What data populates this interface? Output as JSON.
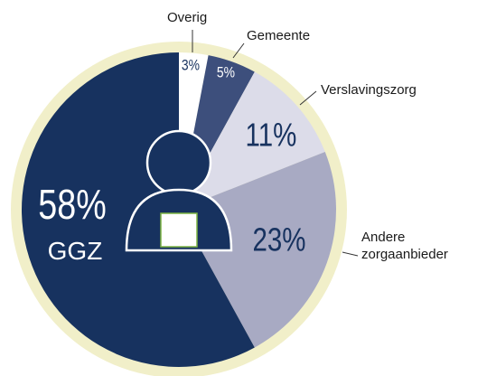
{
  "chart_data": {
    "type": "pie",
    "categories": [
      "Overig",
      "Gemeente",
      "Verslavingszorg",
      "Andere zorgaanbieder",
      "GGZ"
    ],
    "values": [
      3,
      5,
      11,
      23,
      58
    ],
    "value_labels": [
      "3%",
      "5%",
      "11%",
      "23%",
      "58%"
    ],
    "colors": [
      "#ffffff",
      "#3d4f7c",
      "#dcdce9",
      "#a8aac3",
      "#17325f"
    ]
  }
}
